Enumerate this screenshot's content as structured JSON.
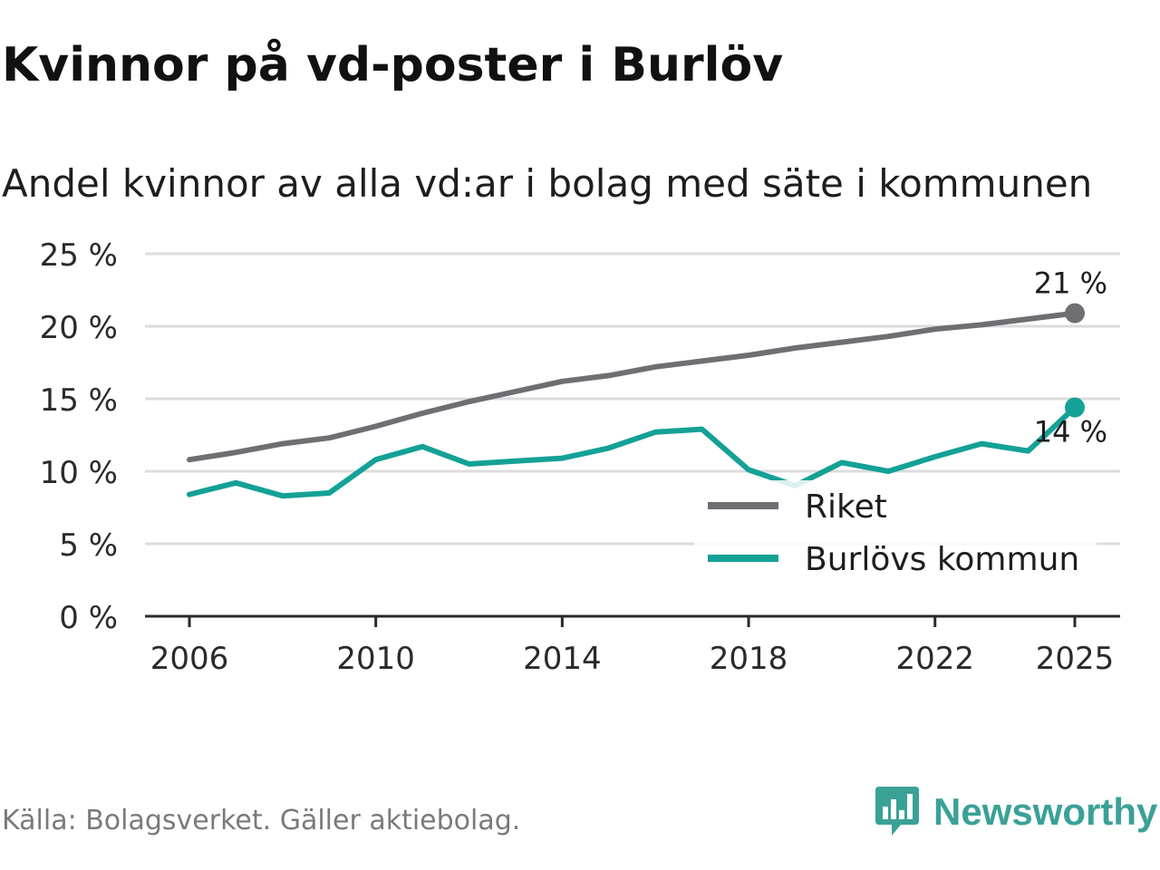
{
  "header": {
    "title": "Kvinnor på vd-poster i Burlöv",
    "subtitle": "Andel kvinnor av alla vd:ar i bolag med säte i kommunen"
  },
  "footer": {
    "source": "Källa: Bolagsverket. Gäller aktiebolag.",
    "brand": "Newsworthy"
  },
  "chart_data": {
    "type": "line",
    "title": "Kvinnor på vd-poster i Burlöv",
    "subtitle": "Andel kvinnor av alla vd:ar i bolag med säte i kommunen",
    "xlabel": "",
    "ylabel": "",
    "ylim": [
      0,
      25
    ],
    "yticks": [
      0,
      5,
      10,
      15,
      20,
      25
    ],
    "ytick_labels": [
      "0 %",
      "5 %",
      "10 %",
      "15 %",
      "20 %",
      "25 %"
    ],
    "xlim": [
      2006,
      2025
    ],
    "xticks": [
      2006,
      2010,
      2014,
      2018,
      2022,
      2025
    ],
    "xtick_labels": [
      "2006",
      "2010",
      "2014",
      "2018",
      "2022",
      "2025"
    ],
    "grid": true,
    "legend_position": "bottom-right",
    "x": [
      2006,
      2007,
      2008,
      2009,
      2010,
      2011,
      2012,
      2013,
      2014,
      2015,
      2016,
      2017,
      2018,
      2019,
      2020,
      2021,
      2022,
      2023,
      2024,
      2025
    ],
    "series": [
      {
        "name": "Riket",
        "color": "#6f6e73",
        "values": [
          10.8,
          11.3,
          11.9,
          12.3,
          13.1,
          14.0,
          14.8,
          15.5,
          16.2,
          16.6,
          17.2,
          17.6,
          18.0,
          18.5,
          18.9,
          19.3,
          19.8,
          20.1,
          20.5,
          20.9
        ],
        "end_label": "21 %"
      },
      {
        "name": "Burlövs kommun",
        "color": "#14a196",
        "values": [
          8.4,
          9.2,
          8.3,
          8.5,
          10.8,
          11.7,
          10.5,
          10.7,
          10.9,
          11.6,
          12.7,
          12.9,
          10.1,
          9.0,
          10.6,
          10.0,
          11.0,
          11.9,
          11.4,
          14.4
        ],
        "end_label": "14 %"
      }
    ]
  }
}
